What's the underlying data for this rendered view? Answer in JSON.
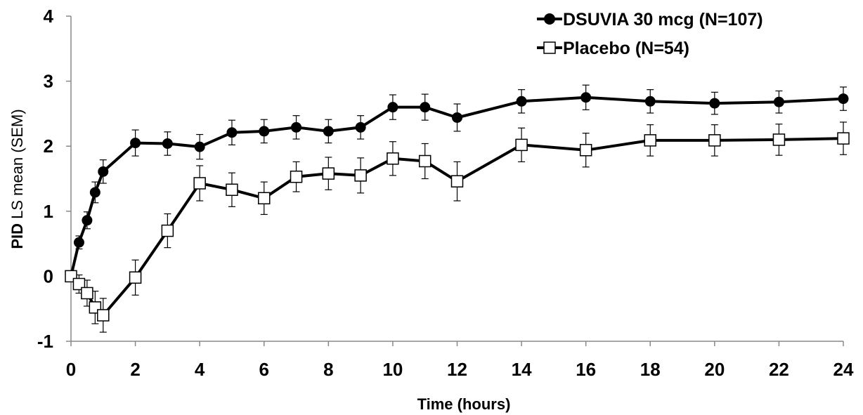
{
  "chart_data": {
    "type": "line",
    "title": "",
    "xlabel": "Time (hours)",
    "ylabel_bold": "PID",
    "ylabel_rest": " LS mean (SEM)",
    "xlim": [
      0,
      24
    ],
    "ylim": [
      -1,
      4
    ],
    "x_ticks": [
      0,
      2,
      4,
      6,
      8,
      10,
      12,
      14,
      16,
      18,
      20,
      22,
      24
    ],
    "y_ticks": [
      -1,
      0,
      1,
      2,
      3,
      4
    ],
    "grid": false,
    "legend_position": "top-right",
    "series": [
      {
        "name": "DSUVIA 30 mcg (N=107)",
        "marker": "filled-circle",
        "color": "#000000",
        "x": [
          0,
          0.25,
          0.5,
          0.75,
          1,
          2,
          3,
          4,
          5,
          6,
          7,
          8,
          9,
          10,
          11,
          12,
          14,
          16,
          18,
          20,
          22,
          24
        ],
        "y": [
          0,
          0.52,
          0.86,
          1.29,
          1.61,
          2.05,
          2.04,
          1.99,
          2.21,
          2.23,
          2.29,
          2.23,
          2.29,
          2.6,
          2.6,
          2.44,
          2.69,
          2.75,
          2.69,
          2.66,
          2.68,
          2.73
        ],
        "sem": [
          0,
          0.1,
          0.13,
          0.16,
          0.18,
          0.2,
          0.18,
          0.19,
          0.19,
          0.18,
          0.18,
          0.18,
          0.18,
          0.19,
          0.2,
          0.21,
          0.18,
          0.19,
          0.18,
          0.17,
          0.17,
          0.18
        ]
      },
      {
        "name": "Placebo (N=54)",
        "marker": "open-square",
        "color": "#000000",
        "x": [
          0,
          0.25,
          0.5,
          0.75,
          1,
          2,
          3,
          4,
          5,
          6,
          7,
          8,
          9,
          10,
          11,
          12,
          14,
          16,
          18,
          20,
          22,
          24
        ],
        "y": [
          0,
          -0.12,
          -0.26,
          -0.48,
          -0.6,
          -0.02,
          0.7,
          1.43,
          1.33,
          1.2,
          1.53,
          1.58,
          1.55,
          1.81,
          1.77,
          1.46,
          2.02,
          1.94,
          2.09,
          2.09,
          2.1,
          2.12
        ],
        "sem": [
          0,
          0.14,
          0.2,
          0.25,
          0.26,
          0.27,
          0.26,
          0.27,
          0.26,
          0.25,
          0.23,
          0.25,
          0.27,
          0.26,
          0.27,
          0.3,
          0.26,
          0.26,
          0.24,
          0.24,
          0.24,
          0.25
        ]
      }
    ]
  }
}
